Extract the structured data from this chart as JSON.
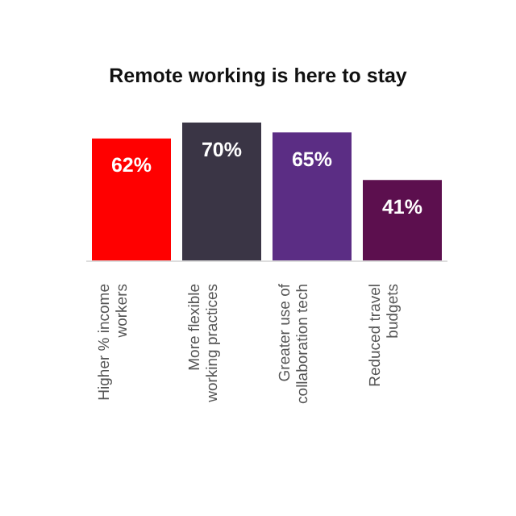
{
  "chart_data": {
    "type": "bar",
    "title": "Remote working is here to stay",
    "categories": [
      "Higher % income workers",
      "More flexible working practices",
      "Greater use of collaboration tech",
      "Reduced travel budgets"
    ],
    "values": [
      62,
      70,
      65,
      41
    ],
    "colors": [
      "#ff0000",
      "#3a3545",
      "#5b2d84",
      "#5c0f4e"
    ],
    "value_labels": [
      "62%",
      "70%",
      "65%",
      "41%"
    ]
  }
}
